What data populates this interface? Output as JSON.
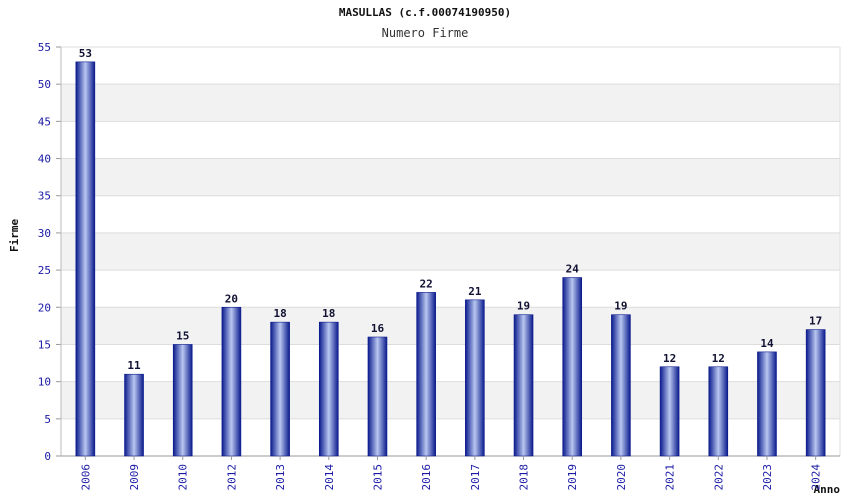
{
  "chart_data": {
    "type": "bar",
    "title": "MASULLAS (c.f.00074190950)",
    "subtitle": "Numero Firme",
    "xlabel": "Anno",
    "ylabel": "Firme",
    "categories": [
      "2006",
      "2009",
      "2010",
      "2012",
      "2013",
      "2014",
      "2015",
      "2016",
      "2017",
      "2018",
      "2019",
      "2020",
      "2021",
      "2022",
      "2023",
      "2024"
    ],
    "values": [
      53,
      11,
      15,
      20,
      18,
      18,
      16,
      22,
      21,
      19,
      24,
      19,
      12,
      12,
      14,
      17
    ],
    "ylim": [
      0,
      55
    ],
    "yticks": [
      0,
      5,
      10,
      15,
      20,
      25,
      30,
      35,
      40,
      45,
      50,
      55
    ],
    "grid": true,
    "legend": "none",
    "colors": {
      "bar_dark": "#0a1a8c",
      "bar_light": "#b8c6f0",
      "band": "#f2f2f2",
      "grid": "#dddddd",
      "tick_text": "#1a1aa6",
      "value_text": "#111133"
    }
  }
}
